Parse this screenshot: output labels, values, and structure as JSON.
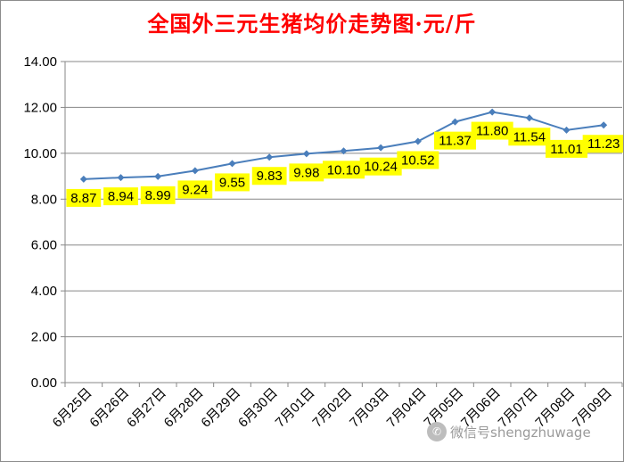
{
  "chart_data": {
    "type": "line",
    "title": "全国外三元生猪均价走势图·元/斤",
    "categories": [
      "6月25日",
      "6月26日",
      "6月27日",
      "6月28日",
      "6月29日",
      "6月30日",
      "7月01日",
      "7月02日",
      "7月03日",
      "7月04日",
      "7月05日",
      "7月06日",
      "7月07日",
      "7月08日",
      "7月09日"
    ],
    "series": [
      {
        "values": [
          8.87,
          8.94,
          8.99,
          9.24,
          9.55,
          9.83,
          9.98,
          10.1,
          10.24,
          10.52,
          11.37,
          11.8,
          11.54,
          11.01,
          11.23
        ]
      }
    ],
    "data_labels": [
      "8.87",
      "8.94",
      "8.99",
      "9.24",
      "9.55",
      "9.83",
      "9.98",
      "10.10",
      "10.24",
      "10.52",
      "11.37",
      "11.80",
      "11.54",
      "11.01",
      "11.23"
    ],
    "y_ticks": [
      "0.00",
      "2.00",
      "4.00",
      "6.00",
      "8.00",
      "10.00",
      "12.00",
      "14.00"
    ],
    "ylim": [
      0,
      14
    ],
    "grid": true,
    "legend": "none",
    "colors": {
      "title": "#ff0000",
      "line": "#4a7ebb",
      "label_bg": "#ffff00",
      "grid": "#878787",
      "axis": "#878787",
      "text": "#000000"
    }
  },
  "watermark": {
    "icon": "wechat-icon",
    "text": "微信号shengzhuwage"
  }
}
